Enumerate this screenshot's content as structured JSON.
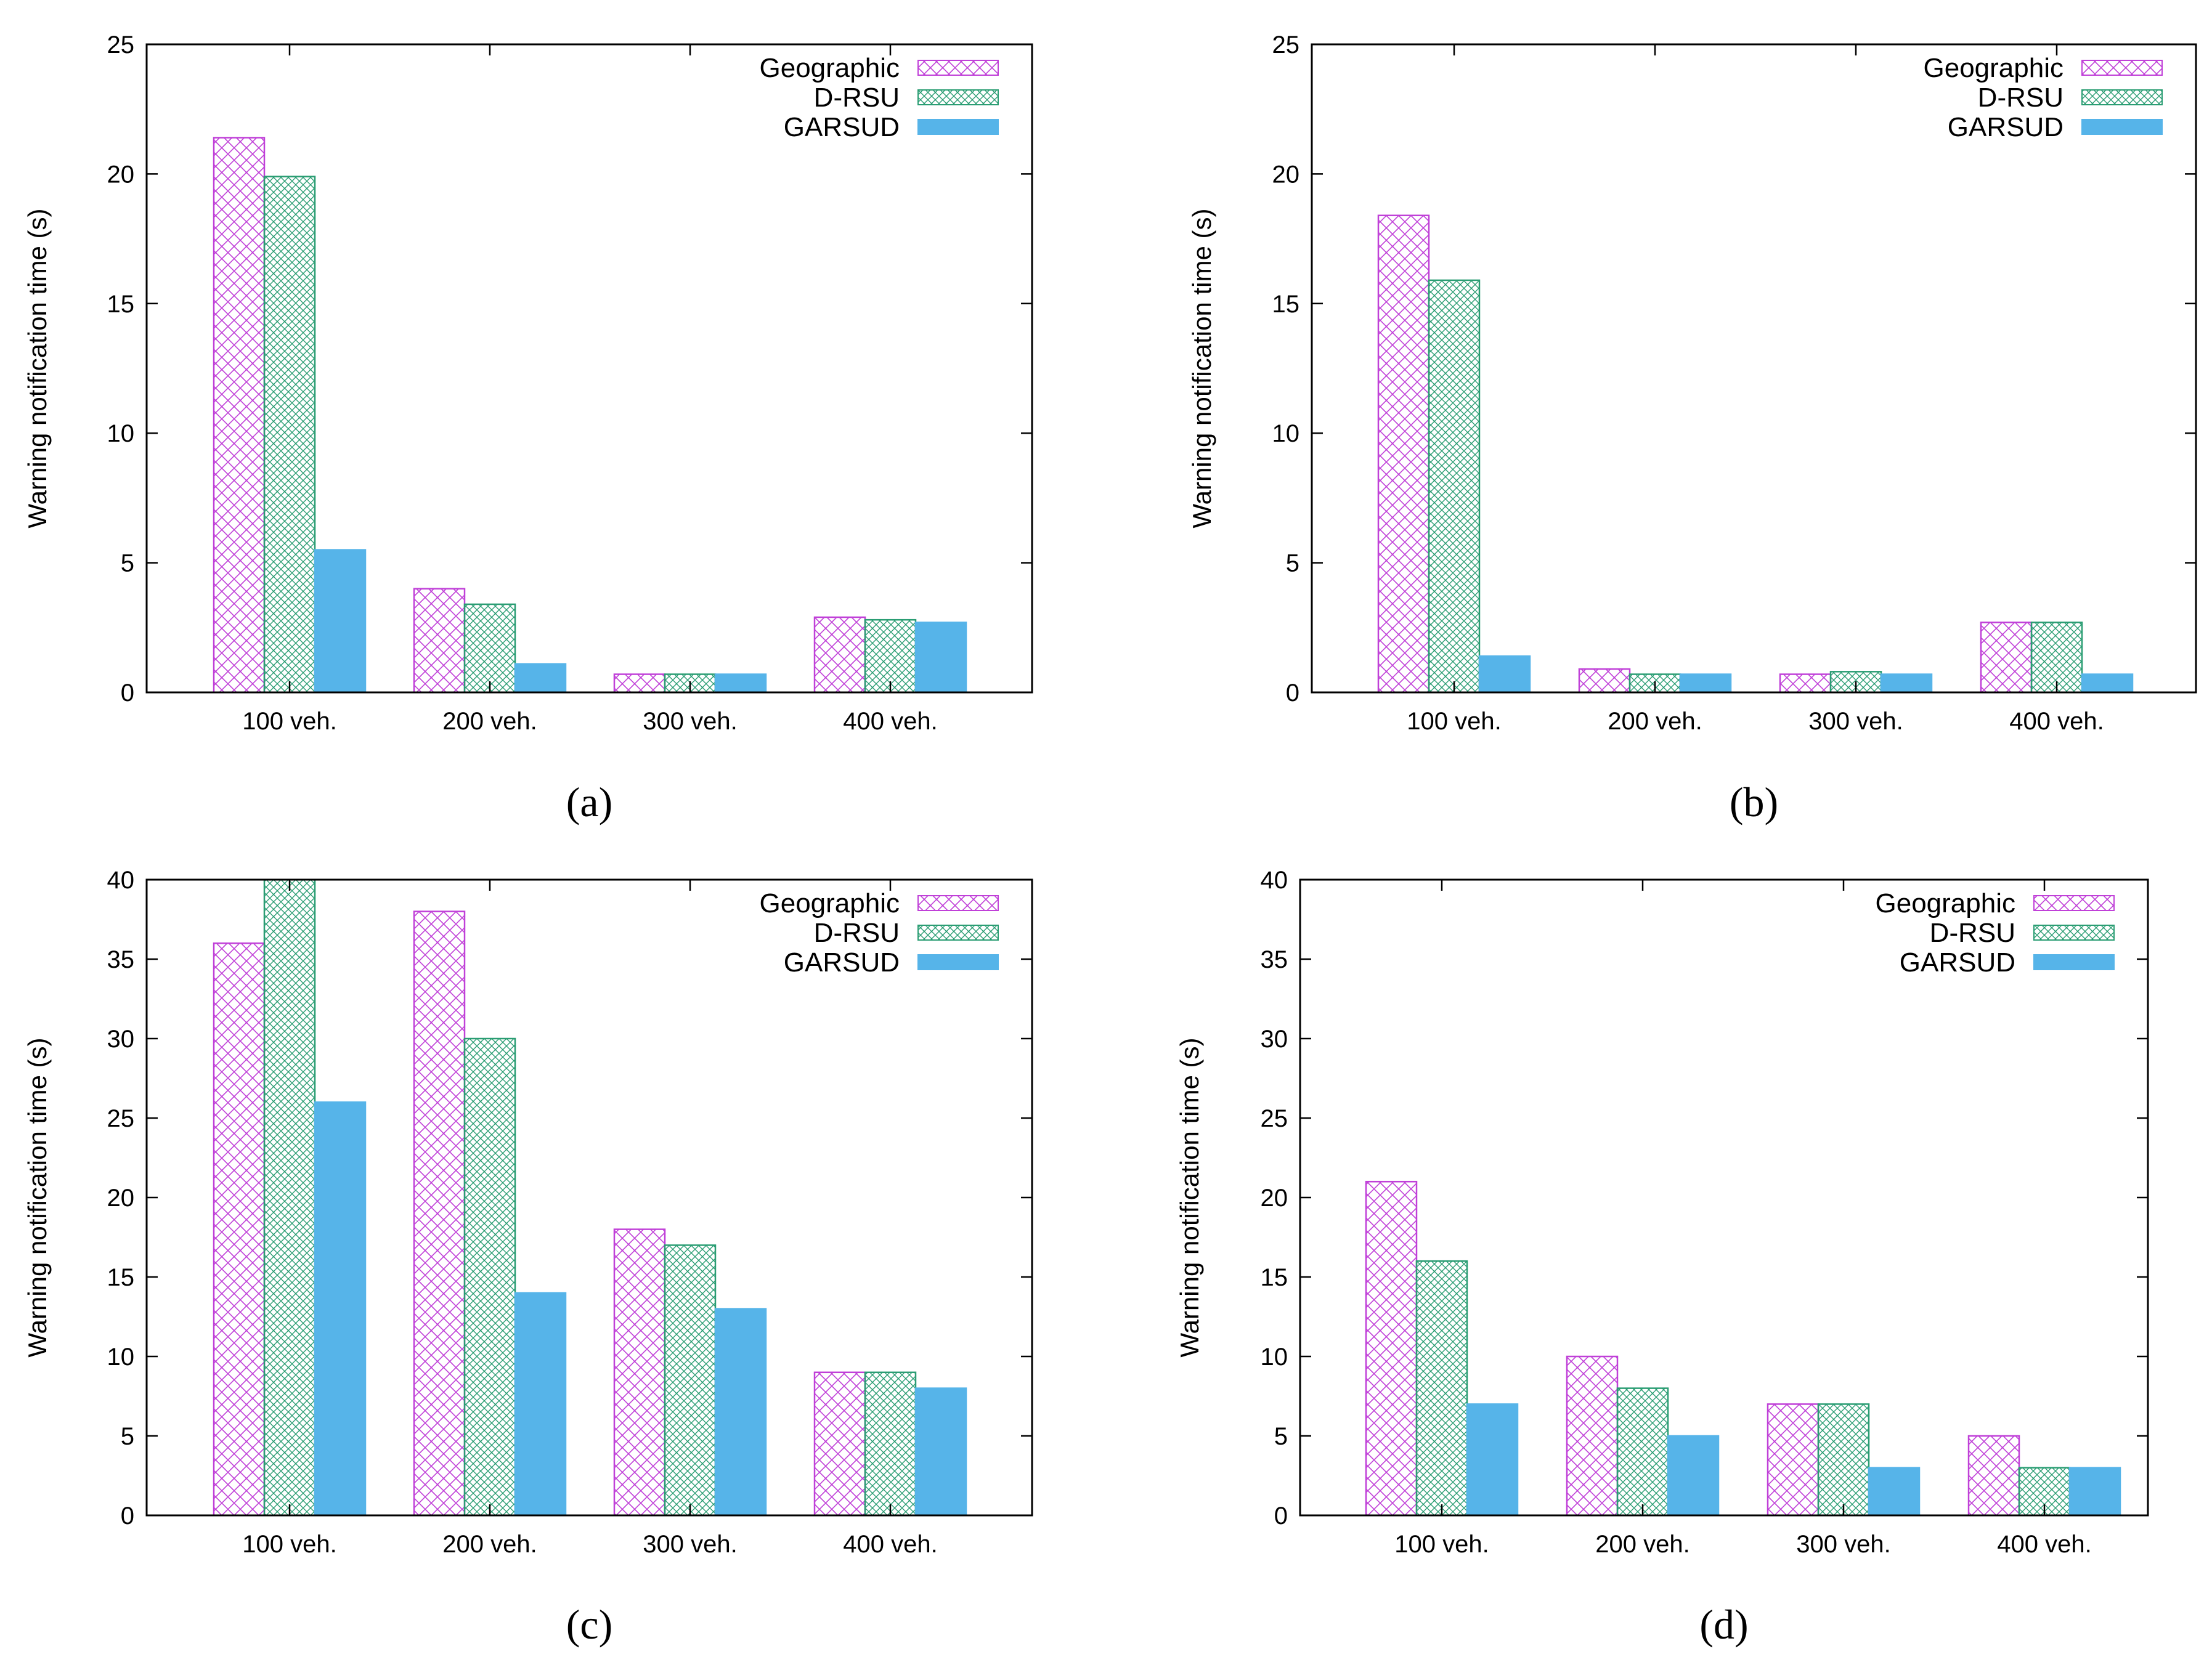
{
  "chart_data": [
    {
      "type": "bar",
      "caption": "(a)",
      "ylabel": "Warning notification time (s)",
      "categories": [
        "100 veh.",
        "200 veh.",
        "300 veh.",
        "400 veh."
      ],
      "ylim": [
        0,
        25
      ],
      "yticks": [
        0,
        5,
        10,
        15,
        20,
        25
      ],
      "legend_position": "top-right",
      "series": [
        {
          "name": "Geographic",
          "values": [
            21.4,
            4.0,
            0.7,
            2.9
          ]
        },
        {
          "name": "D-RSU",
          "values": [
            19.9,
            3.4,
            0.7,
            2.8
          ]
        },
        {
          "name": "GARSUD",
          "values": [
            5.5,
            1.1,
            0.7,
            2.7
          ]
        }
      ]
    },
    {
      "type": "bar",
      "caption": "(b)",
      "ylabel": "Warning notification time (s)",
      "categories": [
        "100 veh.",
        "200 veh.",
        "300 veh.",
        "400 veh."
      ],
      "ylim": [
        0,
        25
      ],
      "yticks": [
        0,
        5,
        10,
        15,
        20,
        25
      ],
      "legend_position": "top-right",
      "series": [
        {
          "name": "Geographic",
          "values": [
            18.4,
            0.9,
            0.7,
            2.7
          ]
        },
        {
          "name": "D-RSU",
          "values": [
            15.9,
            0.7,
            0.8,
            2.7
          ]
        },
        {
          "name": "GARSUD",
          "values": [
            1.4,
            0.7,
            0.7,
            0.7
          ]
        }
      ]
    },
    {
      "type": "bar",
      "caption": "(c)",
      "ylabel": "Warning notification time (s)",
      "categories": [
        "100 veh.",
        "200 veh.",
        "300 veh.",
        "400 veh."
      ],
      "ylim": [
        0,
        40
      ],
      "yticks": [
        0,
        5,
        10,
        15,
        20,
        25,
        30,
        35,
        40
      ],
      "legend_position": "top-right",
      "series": [
        {
          "name": "Geographic",
          "values": [
            36,
            38,
            18,
            9
          ]
        },
        {
          "name": "D-RSU",
          "values": [
            40,
            30,
            17,
            9
          ]
        },
        {
          "name": "GARSUD",
          "values": [
            26,
            14,
            13,
            8
          ]
        }
      ]
    },
    {
      "type": "bar",
      "caption": "(d)",
      "ylabel": "Warning notification time (s)",
      "categories": [
        "100 veh.",
        "200 veh.",
        "300 veh.",
        "400 veh."
      ],
      "ylim": [
        0,
        40
      ],
      "yticks": [
        0,
        5,
        10,
        15,
        20,
        25,
        30,
        35,
        40
      ],
      "legend_position": "top-right",
      "series": [
        {
          "name": "Geographic",
          "values": [
            21,
            10,
            7,
            5
          ]
        },
        {
          "name": "D-RSU",
          "values": [
            16,
            8,
            7,
            3
          ]
        },
        {
          "name": "GARSUD",
          "values": [
            7,
            5,
            3,
            3
          ]
        }
      ]
    }
  ],
  "colors": {
    "geographic": "#c040d8",
    "drsu": "#2a9d73",
    "garsud": "#56b4e9",
    "axis": "#000000"
  }
}
